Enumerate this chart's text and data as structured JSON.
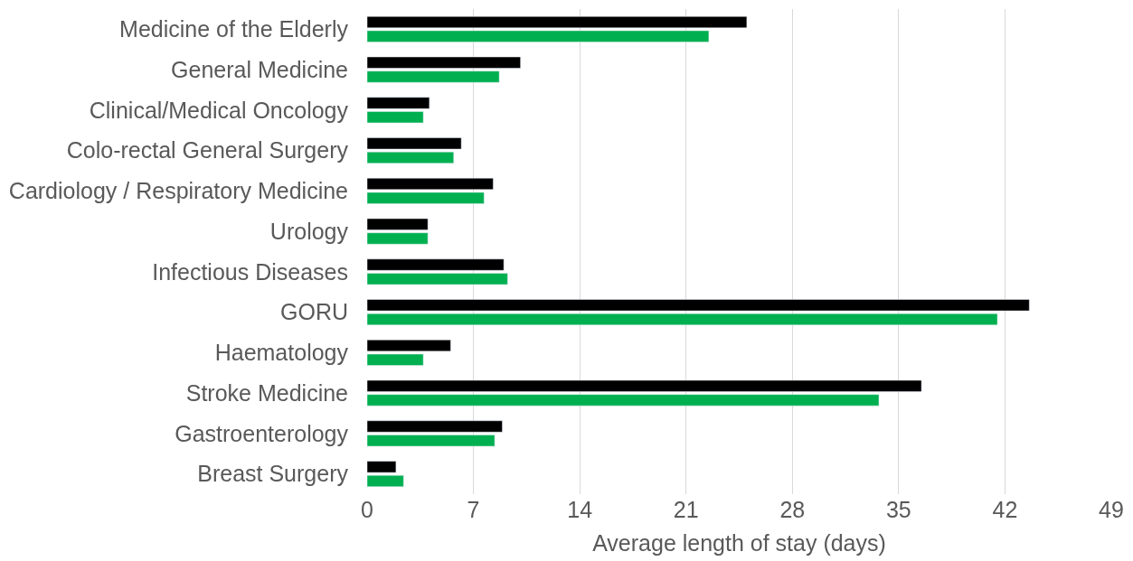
{
  "chart_data": {
    "type": "bar",
    "orientation": "horizontal",
    "xlabel": "Average length of stay (days)",
    "categories": [
      "Medicine of the Elderly",
      "General Medicine",
      "Clinical/Medical Oncology",
      "Colo-rectal General Surgery",
      "Cardiology / Respiratory Medicine",
      "Urology",
      "Infectious Diseases",
      "GORU",
      "Haematology",
      "Stroke Medicine",
      "Gastroenterology",
      "Breast Surgery"
    ],
    "series": [
      {
        "color": "#000000",
        "values": [
          25.0,
          10.1,
          4.1,
          6.2,
          8.3,
          4.0,
          9.0,
          43.6,
          5.5,
          36.5,
          8.9,
          1.9
        ]
      },
      {
        "color": "#00b050",
        "values": [
          22.5,
          8.7,
          3.7,
          5.7,
          7.7,
          4.0,
          9.25,
          41.5,
          3.7,
          33.7,
          8.4,
          2.4
        ]
      }
    ],
    "xlim": [
      0,
      49
    ],
    "xticks": [
      0,
      7,
      14,
      21,
      28,
      35,
      42,
      49
    ],
    "grid": "x",
    "legend": false
  }
}
